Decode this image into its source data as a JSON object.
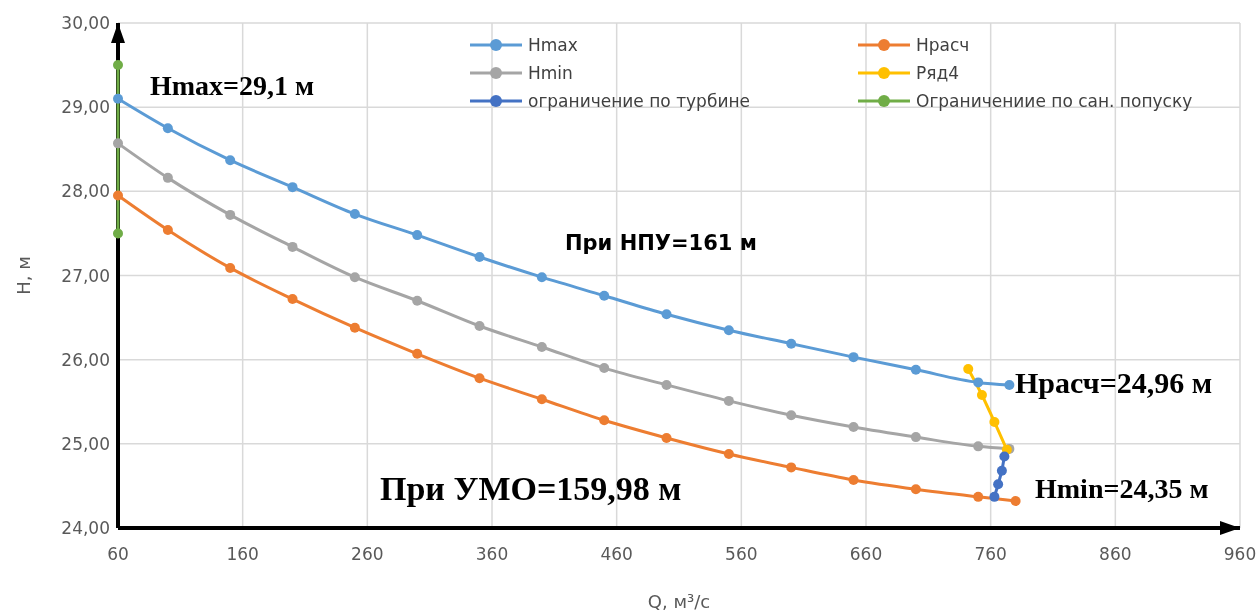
{
  "chart_data": {
    "type": "line",
    "xlabel": "Q, м³/с",
    "ylabel": "H, м",
    "xlim": [
      60,
      960
    ],
    "xticks": [
      60,
      160,
      260,
      360,
      460,
      560,
      660,
      760,
      860,
      960
    ],
    "ylim": [
      24,
      30
    ],
    "yticks": [
      {
        "value": 24,
        "label": "24,00"
      },
      {
        "value": 25,
        "label": "25,00"
      },
      {
        "value": 26,
        "label": "26,00"
      },
      {
        "value": 27,
        "label": "27,00"
      },
      {
        "value": 28,
        "label": "28,00"
      },
      {
        "value": 29,
        "label": "29,00"
      },
      {
        "value": 30,
        "label": "30,00"
      }
    ],
    "grid": true,
    "legend": "top right",
    "marker": "circle",
    "line_style": "solid",
    "series": [
      {
        "name": "Hmax",
        "color": "#5b9bd5",
        "x": [
          60,
          100,
          150,
          200,
          250,
          300,
          350,
          400,
          450,
          500,
          550,
          600,
          650,
          700,
          750,
          775
        ],
        "values": [
          29.1,
          28.75,
          28.37,
          28.05,
          27.73,
          27.48,
          27.22,
          26.98,
          26.76,
          26.54,
          26.35,
          26.19,
          26.03,
          25.88,
          25.73,
          25.7
        ]
      },
      {
        "name": "Hрасч",
        "color": "#ed7d31",
        "x": [
          60,
          100,
          150,
          200,
          250,
          300,
          350,
          400,
          450,
          500,
          550,
          600,
          650,
          700,
          750,
          780
        ],
        "values": [
          27.95,
          27.54,
          27.09,
          26.72,
          26.38,
          26.07,
          25.78,
          25.53,
          25.28,
          25.07,
          24.88,
          24.72,
          24.57,
          24.46,
          24.37,
          24.32
        ]
      },
      {
        "name": "Hmin",
        "color": "#a5a5a5",
        "x": [
          60,
          100,
          150,
          200,
          250,
          300,
          350,
          400,
          450,
          500,
          550,
          600,
          650,
          700,
          750,
          775
        ],
        "values": [
          28.57,
          28.16,
          27.72,
          27.34,
          26.98,
          26.7,
          26.4,
          26.15,
          25.9,
          25.7,
          25.51,
          25.34,
          25.2,
          25.08,
          24.97,
          24.94
        ]
      },
      {
        "name": "Ряд4",
        "color": "#ffc000",
        "x": [
          742,
          753,
          763,
          773
        ],
        "values": [
          25.89,
          25.58,
          25.26,
          24.93
        ]
      },
      {
        "name": "ограничение по турбине",
        "color": "#4472c4",
        "x": [
          771,
          769,
          766,
          763
        ],
        "values": [
          24.85,
          24.68,
          24.52,
          24.37
        ]
      },
      {
        "name": "Ограничениие по сан. попуску",
        "color": "#70ad47",
        "x": [
          60,
          60
        ],
        "values": [
          29.5,
          27.5
        ]
      }
    ],
    "annotations": [
      "Hmax=29,1  м",
      "При НПУ=161  м",
      "Hрасч=24,96  м",
      "При  УМО=159,98  м",
      "Hmin=24,35  м"
    ]
  }
}
